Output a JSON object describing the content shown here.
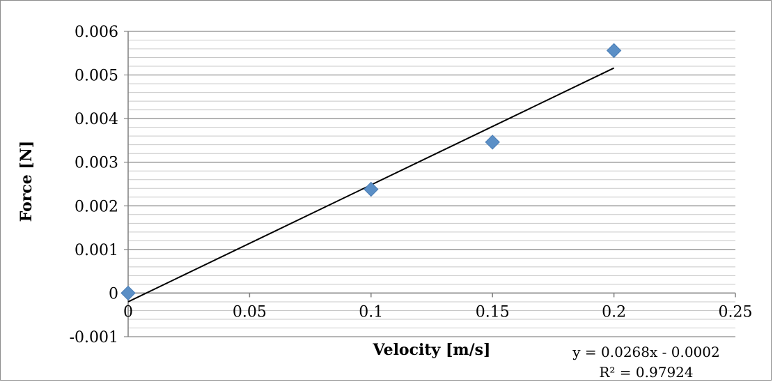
{
  "chart_data": {
    "type": "scatter",
    "title": "",
    "xlabel": "Velocity [m/s]",
    "ylabel": "Force [N]",
    "xlim": [
      0,
      0.25
    ],
    "ylim": [
      -0.001,
      0.006
    ],
    "x_ticks": [
      "0",
      "0.05",
      "0.1",
      "0.15",
      "0.2",
      "0.25"
    ],
    "x_tick_values": [
      0,
      0.05,
      0.1,
      0.15,
      0.2,
      0.25
    ],
    "y_ticks": [
      "-0.001",
      "0",
      "0.001",
      "0.002",
      "0.003",
      "0.004",
      "0.005",
      "0.006"
    ],
    "y_tick_values": [
      -0.001,
      0,
      0.001,
      0.002,
      0.003,
      0.004,
      0.005,
      0.006
    ],
    "minor_gridline_step": 0.0002,
    "grid": true,
    "legend": "none",
    "marker": "diamond",
    "marker_color": "#5B8FC6",
    "series": [
      {
        "x": [
          0,
          0.1,
          0.15,
          0.2
        ],
        "y": [
          0,
          0.00238,
          0.00346,
          0.00556
        ]
      }
    ],
    "trendline": {
      "type": "linear",
      "slope": 0.0268,
      "intercept": -0.0002,
      "x_range": [
        0,
        0.2
      ],
      "color": "#000000",
      "equation": "y = 0.0268x - 0.0002",
      "r_squared": "R² = 0.97924"
    }
  }
}
